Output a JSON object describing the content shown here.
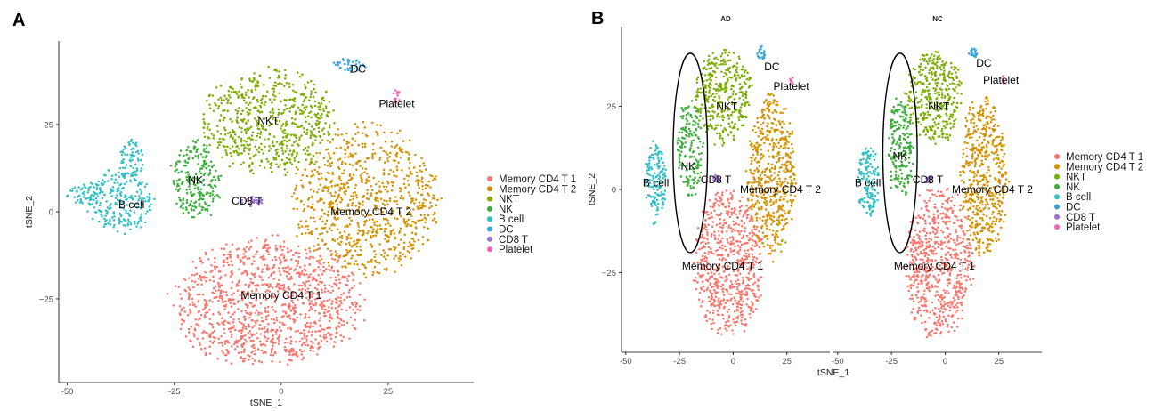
{
  "panels": {
    "a": {
      "letter": "A"
    },
    "b": {
      "letter": "B"
    }
  },
  "chart_data": [
    {
      "id": "panel-a",
      "type": "scatter",
      "title": "",
      "xlabel": "tSNE_1",
      "ylabel": "tSNE_2",
      "xlim": [
        -52,
        45
      ],
      "ylim": [
        -49,
        49
      ],
      "xticks": [
        -50,
        -25,
        0,
        25
      ],
      "yticks": [
        -25,
        0,
        25
      ],
      "xtick_labels": [
        "-50",
        "-25",
        "0",
        "25"
      ],
      "ytick_labels": [
        "−25",
        "0",
        "25"
      ],
      "legend_position": "right",
      "clusters": [
        {
          "name": "Memory CD4 T 1",
          "label": "Memory CD4 T 1",
          "color": "#F8766D",
          "label_at": [
            0,
            -24
          ],
          "blobs": [
            {
              "center": [
                -3,
                -26
              ],
              "radius": [
                22,
                18
              ],
              "n": 1150
            }
          ]
        },
        {
          "name": "Memory CD4 T 2",
          "label": "Memory CD4 T 2",
          "color": "#D39200",
          "label_at": [
            21,
            0
          ],
          "blobs": [
            {
              "center": [
                20,
                3
              ],
              "radius": [
                17,
                21
              ],
              "n": 820
            }
          ]
        },
        {
          "name": "NKT",
          "label": "NKT",
          "color": "#7CAE00",
          "label_at": [
            -3,
            26
          ],
          "blobs": [
            {
              "center": [
                -3,
                26
              ],
              "radius": [
                15,
                15
              ],
              "n": 620
            }
          ]
        },
        {
          "name": "NK",
          "label": "NK",
          "color": "#3DAE3D",
          "label_at": [
            -20,
            9
          ],
          "blobs": [
            {
              "center": [
                -20,
                9
              ],
              "radius": [
                6,
                11
              ],
              "n": 230
            }
          ]
        },
        {
          "name": "B cell",
          "label": "B cell",
          "color": "#2FC0C5",
          "label_at": [
            -35,
            2
          ],
          "blobs": [
            {
              "center": [
                -38,
                3
              ],
              "radius": [
                8,
                9
              ],
              "n": 230
            },
            {
              "center": [
                -35,
                15
              ],
              "radius": [
                3,
                6
              ],
              "n": 70
            },
            {
              "center": [
                -46,
                5
              ],
              "radius": [
                4,
                3
              ],
              "n": 40
            }
          ]
        },
        {
          "name": "DC",
          "label": "DC",
          "color": "#3AA5DB",
          "label_at": [
            18,
            41
          ],
          "blobs": [
            {
              "center": [
                16,
                42
              ],
              "radius": [
                4,
                2
              ],
              "n": 40
            }
          ]
        },
        {
          "name": "CD8 T",
          "label": "CD8 T",
          "color": "#9C6FD1",
          "label_at": [
            -8,
            3
          ],
          "blobs": [
            {
              "center": [
                -7,
                3
              ],
              "radius": [
                3,
                1.5
              ],
              "n": 30
            }
          ]
        },
        {
          "name": "Platelet",
          "label": "Platelet",
          "color": "#F066B5",
          "label_at": [
            27,
            31
          ],
          "blobs": [
            {
              "center": [
                27,
                33
              ],
              "radius": [
                1,
                2
              ],
              "n": 14
            }
          ]
        }
      ]
    },
    {
      "id": "panel-b",
      "type": "scatter",
      "xlabel": "tSNE_1",
      "ylabel": "tSNE_2",
      "xlim": [
        -52,
        45
      ],
      "ylim": [
        -49,
        49
      ],
      "xticks": [
        -50,
        -25,
        0,
        25
      ],
      "yticks": [
        -25,
        0,
        25
      ],
      "xtick_labels": [
        "-50",
        "-25",
        "0",
        "25"
      ],
      "ytick_labels": [
        "−25",
        "0",
        "25"
      ],
      "legend_position": "right",
      "facets": [
        {
          "title": "AD",
          "ellipse": {
            "center": [
              -20,
              11
            ],
            "radius": [
              8,
              30
            ]
          },
          "clusters": [
            {
              "name": "Memory CD4 T 1",
              "label": "Memory CD4 T 1",
              "color": "#F8766D",
              "label_at": [
                -5,
                -23
              ],
              "blobs": [
                {
                  "center": [
                    -2,
                    -22
                  ],
                  "radius": [
                    16,
                    22
                  ],
                  "n": 650
                }
              ]
            },
            {
              "name": "Memory CD4 T 2",
              "label": "Memory CD4 T 2",
              "color": "#D39200",
              "label_at": [
                22,
                0
              ],
              "blobs": [
                {
                  "center": [
                    18,
                    4
                  ],
                  "radius": [
                    11,
                    24
                  ],
                  "n": 520
                }
              ]
            },
            {
              "name": "NKT",
              "label": "NKT",
              "color": "#7CAE00",
              "label_at": [
                -3,
                25
              ],
              "blobs": [
                {
                  "center": [
                    -5,
                    28
                  ],
                  "radius": [
                    13,
                    14
                  ],
                  "n": 360
                }
              ]
            },
            {
              "name": "NK",
              "label": "NK",
              "color": "#3DAE3D",
              "label_at": [
                -21,
                7
              ],
              "blobs": [
                {
                  "center": [
                    -20,
                    12
                  ],
                  "radius": [
                    6,
                    15
                  ],
                  "n": 170
                }
              ]
            },
            {
              "name": "B cell",
              "label": "B cell",
              "color": "#2FC0C5",
              "label_at": [
                -36,
                2
              ],
              "blobs": [
                {
                  "center": [
                    -36,
                    2
                  ],
                  "radius": [
                    5,
                    12
                  ],
                  "n": 150
                }
              ]
            },
            {
              "name": "DC",
              "label": "DC",
              "color": "#3AA5DB",
              "label_at": [
                18,
                37
              ],
              "blobs": [
                {
                  "center": [
                    13,
                    41
                  ],
                  "radius": [
                    2,
                    2
                  ],
                  "n": 22
                }
              ]
            },
            {
              "name": "CD8 T",
              "label": "CD8 T",
              "color": "#9C6FD1",
              "label_at": [
                -8,
                3
              ],
              "blobs": [
                {
                  "center": [
                    -8,
                    3
                  ],
                  "radius": [
                    2,
                    1.2
                  ],
                  "n": 16
                }
              ]
            },
            {
              "name": "Platelet",
              "label": "Platelet",
              "color": "#F066B5",
              "label_at": [
                27,
                31
              ],
              "blobs": [
                {
                  "center": [
                    27,
                    33
                  ],
                  "radius": [
                    0.8,
                    1.5
                  ],
                  "n": 8
                }
              ]
            }
          ]
        },
        {
          "title": "NC",
          "ellipse": {
            "center": [
              -21,
              11
            ],
            "radius": [
              8,
              30
            ]
          },
          "clusters": [
            {
              "name": "Memory CD4 T 1",
              "label": "Memory CD4 T 1",
              "color": "#F8766D",
              "label_at": [
                -5,
                -23
              ],
              "blobs": [
                {
                  "center": [
                    -3,
                    -22
                  ],
                  "radius": [
                    16,
                    22
                  ],
                  "n": 650
                }
              ]
            },
            {
              "name": "Memory CD4 T 2",
              "label": "Memory CD4 T 2",
              "color": "#D39200",
              "label_at": [
                22,
                0
              ],
              "blobs": [
                {
                  "center": [
                    18,
                    4
                  ],
                  "radius": [
                    11,
                    24
                  ],
                  "n": 520
                }
              ]
            },
            {
              "name": "NKT",
              "label": "NKT",
              "color": "#7CAE00",
              "label_at": [
                -3,
                25
              ],
              "blobs": [
                {
                  "center": [
                    -5,
                    28
                  ],
                  "radius": [
                    13,
                    14
                  ],
                  "n": 360
                }
              ]
            },
            {
              "name": "NK",
              "label": "NK",
              "color": "#3DAE3D",
              "label_at": [
                -21,
                10
              ],
              "blobs": [
                {
                  "center": [
                    -21,
                    12
                  ],
                  "radius": [
                    6,
                    15
                  ],
                  "n": 200
                }
              ]
            },
            {
              "name": "B cell",
              "label": "B cell",
              "color": "#2FC0C5",
              "label_at": [
                -36,
                2
              ],
              "blobs": [
                {
                  "center": [
                    -36,
                    3
                  ],
                  "radius": [
                    5,
                    11
                  ],
                  "n": 140
                }
              ]
            },
            {
              "name": "DC",
              "label": "DC",
              "color": "#3AA5DB",
              "label_at": [
                18,
                38
              ],
              "blobs": [
                {
                  "center": [
                    13,
                    41
                  ],
                  "radius": [
                    2,
                    2
                  ],
                  "n": 22
                }
              ]
            },
            {
              "name": "CD8 T",
              "label": "CD8 T",
              "color": "#9C6FD1",
              "label_at": [
                -8,
                3
              ],
              "blobs": [
                {
                  "center": [
                    -8,
                    3
                  ],
                  "radius": [
                    2,
                    1.2
                  ],
                  "n": 16
                }
              ]
            },
            {
              "name": "Platelet",
              "label": "Platelet",
              "color": "#F066B5",
              "label_at": [
                26,
                33
              ],
              "blobs": [
                {
                  "center": [
                    27,
                    33
                  ],
                  "radius": [
                    0.8,
                    1.5
                  ],
                  "n": 8
                }
              ]
            }
          ]
        }
      ]
    }
  ],
  "legend": [
    {
      "label": "Memory CD4 T 1",
      "color": "#F8766D"
    },
    {
      "label": "Memory CD4 T 2",
      "color": "#D39200"
    },
    {
      "label": "NKT",
      "color": "#7CAE00"
    },
    {
      "label": "NK",
      "color": "#3DAE3D"
    },
    {
      "label": "B cell",
      "color": "#2FC0C5"
    },
    {
      "label": "DC",
      "color": "#3AA5DB"
    },
    {
      "label": "CD8 T",
      "color": "#9C6FD1"
    },
    {
      "label": "Platelet",
      "color": "#F066B5"
    }
  ]
}
